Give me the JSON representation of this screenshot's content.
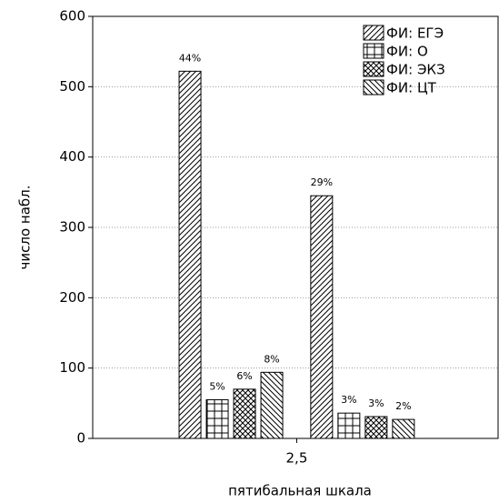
{
  "chart_data": {
    "type": "bar",
    "x": [
      2,
      3
    ],
    "xlim": [
      0.95,
      4.03
    ],
    "xticks": [
      {
        "value": 2.5,
        "label": "2,5"
      }
    ],
    "xlabel": "пятибальная шкала",
    "ylabel": "число набл.",
    "ylim": [
      0,
      600
    ],
    "yticks": [
      0,
      100,
      200,
      300,
      400,
      500,
      600
    ],
    "grid": true,
    "legend": "top-right",
    "series": [
      {
        "name": "ФИ: ЕГЭ",
        "color": "#000000",
        "pattern": "forward-diagonal",
        "values": [
          522,
          345
        ],
        "percent_labels": [
          "44%",
          "29%"
        ]
      },
      {
        "name": "ФИ: О",
        "color": "#000000",
        "pattern": "grid",
        "values": [
          55,
          36
        ],
        "percent_labels": [
          "5%",
          "3%"
        ]
      },
      {
        "name": "ФИ: ЭКЗ",
        "color": "#000000",
        "pattern": "crosshatch",
        "values": [
          70,
          31
        ],
        "percent_labels": [
          "6%",
          "3%"
        ]
      },
      {
        "name": "ФИ: ЦТ",
        "color": "#000000",
        "pattern": "back-diagonal",
        "values": [
          94,
          27
        ],
        "percent_labels": [
          "8%",
          "2%"
        ]
      }
    ]
  }
}
